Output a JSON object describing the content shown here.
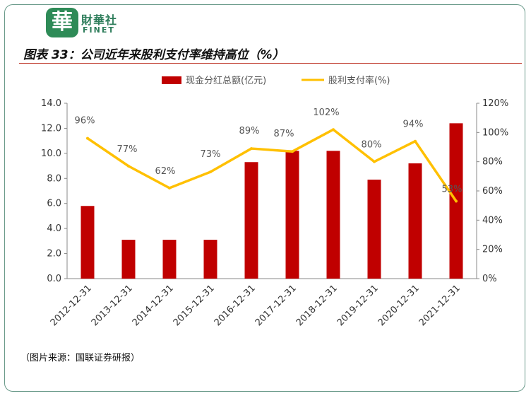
{
  "header": {
    "logo_char": "華",
    "logo_cn": "財華社",
    "logo_en": "FINET"
  },
  "title": "图表 33：公司近年来股利支付率维持高位（%）",
  "source": "（图片来源：国联证券研报）",
  "colors": {
    "bar": "#c00000",
    "line": "#ffc000",
    "logo": "#2e8b57",
    "rule": "#c0392b"
  },
  "chart_data": {
    "type": "bar",
    "categories": [
      "2012-12-31",
      "2013-12-31",
      "2014-12-31",
      "2015-12-31",
      "2016-12-31",
      "2017-12-31",
      "2018-12-31",
      "2019-12-31",
      "2020-12-31",
      "2021-12-31"
    ],
    "series": [
      {
        "name": "现金分红总额(亿元)",
        "type": "bar",
        "axis": "left",
        "values": [
          5.8,
          3.1,
          3.1,
          3.1,
          9.3,
          10.2,
          10.2,
          7.9,
          9.2,
          12.4
        ]
      },
      {
        "name": "股利支付率(%)",
        "type": "line",
        "axis": "right",
        "values": [
          96,
          77,
          62,
          73,
          89,
          87,
          102,
          80,
          94,
          53
        ],
        "labels": [
          "96%",
          "77%",
          "62%",
          "73%",
          "89%",
          "87%",
          "102%",
          "80%",
          "94%",
          "53%"
        ]
      }
    ],
    "y_left": {
      "min": 0,
      "max": 14,
      "ticks": [
        "0.0",
        "2.0",
        "4.0",
        "6.0",
        "8.0",
        "10.0",
        "12.0",
        "14.0"
      ]
    },
    "y_right": {
      "min": 0,
      "max": 120,
      "ticks": [
        "0%",
        "20%",
        "40%",
        "60%",
        "80%",
        "100%",
        "120%"
      ]
    },
    "legend_position": "top-center",
    "grid": false
  }
}
